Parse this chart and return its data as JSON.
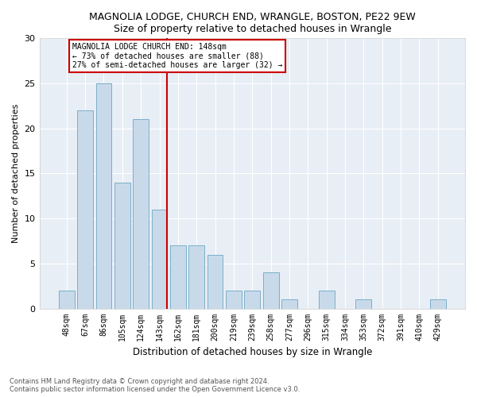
{
  "title": "MAGNOLIA LODGE, CHURCH END, WRANGLE, BOSTON, PE22 9EW",
  "subtitle": "Size of property relative to detached houses in Wrangle",
  "xlabel": "Distribution of detached houses by size in Wrangle",
  "ylabel": "Number of detached properties",
  "categories": [
    "48sqm",
    "67sqm",
    "86sqm",
    "105sqm",
    "124sqm",
    "143sqm",
    "162sqm",
    "181sqm",
    "200sqm",
    "219sqm",
    "239sqm",
    "258sqm",
    "277sqm",
    "296sqm",
    "315sqm",
    "334sqm",
    "353sqm",
    "372sqm",
    "391sqm",
    "410sqm",
    "429sqm"
  ],
  "values": [
    2,
    22,
    25,
    14,
    21,
    11,
    7,
    7,
    6,
    2,
    2,
    4,
    1,
    0,
    2,
    0,
    1,
    0,
    0,
    0,
    1
  ],
  "bar_color": "#c8daea",
  "bar_edge_color": "#7aafc8",
  "highlight_color": "#cc0000",
  "annotation_text": "MAGNOLIA LODGE CHURCH END: 148sqm\n← 73% of detached houses are smaller (88)\n27% of semi-detached houses are larger (32) →",
  "annotation_box_color": "#ffffff",
  "annotation_box_edge": "#cc0000",
  "ylim": [
    0,
    30
  ],
  "yticks": [
    0,
    5,
    10,
    15,
    20,
    25,
    30
  ],
  "footer1": "Contains HM Land Registry data © Crown copyright and database right 2024.",
  "footer2": "Contains public sector information licensed under the Open Government Licence v3.0.",
  "fig_bg_color": "#ffffff",
  "plot_bg_color": "#e8eef5"
}
